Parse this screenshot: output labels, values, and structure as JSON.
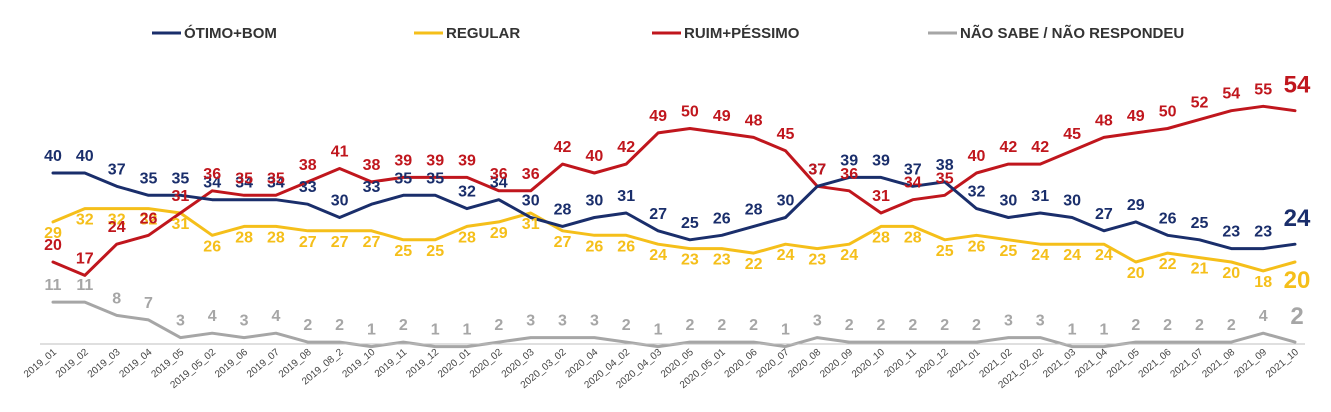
{
  "chart_data": {
    "type": "line",
    "title": "",
    "xlabel": "",
    "ylabel": "",
    "ylim": [
      0,
      60
    ],
    "grid": false,
    "legend_position": "top",
    "categories": [
      "2019_01",
      "2019_02",
      "2019_03",
      "2019_04",
      "2019_05",
      "2019_05_02",
      "2019_06",
      "2019_07",
      "2019_08",
      "2019_08_2",
      "2019_10",
      "2019_11",
      "2019_12",
      "2020_01",
      "2020_02",
      "2020_03",
      "2020_03_02",
      "2020_04",
      "2020_04_02",
      "2020_04_03",
      "2020_05",
      "2020_05_01",
      "2020_06",
      "2020_07",
      "2020_08",
      "2020_09",
      "2020_10",
      "2020_11",
      "2020_12",
      "2021_01",
      "2021_02",
      "2021_02_02",
      "2021_03",
      "2021_04",
      "2021_05",
      "2021_06",
      "2021_07",
      "2021_08",
      "2021_09",
      "2021_10"
    ],
    "series": [
      {
        "name": "ÓTIMO+BOM",
        "color": "#1a2e6b",
        "values": [
          40,
          40,
          37,
          35,
          35,
          34,
          34,
          34,
          33,
          30,
          33,
          35,
          35,
          32,
          34,
          30,
          28,
          30,
          31,
          27,
          25,
          26,
          28,
          30,
          37,
          39,
          39,
          37,
          38,
          32,
          30,
          31,
          30,
          27,
          29,
          26,
          25,
          23,
          23,
          24
        ]
      },
      {
        "name": "REGULAR",
        "color": "#f5bf1a",
        "values": [
          29,
          32,
          32,
          32,
          31,
          26,
          28,
          28,
          27,
          27,
          27,
          25,
          25,
          28,
          29,
          31,
          27,
          26,
          26,
          24,
          23,
          23,
          22,
          24,
          23,
          24,
          28,
          28,
          25,
          26,
          25,
          24,
          24,
          24,
          20,
          22,
          21,
          20,
          18,
          20
        ]
      },
      {
        "name": "RUIM+PÉSSIMO",
        "color": "#c0161d",
        "values": [
          20,
          17,
          24,
          26,
          31,
          36,
          35,
          35,
          38,
          41,
          38,
          39,
          39,
          39,
          36,
          36,
          42,
          40,
          42,
          49,
          50,
          49,
          48,
          45,
          37,
          36,
          31,
          34,
          35,
          40,
          42,
          42,
          45,
          48,
          49,
          50,
          52,
          54,
          55,
          54
        ]
      },
      {
        "name": "NÃO SABE / NÃO RESPONDEU",
        "color": "#a6a6a6",
        "values": [
          11,
          11,
          8,
          7,
          3,
          4,
          3,
          4,
          2,
          2,
          1,
          2,
          1,
          1,
          2,
          3,
          3,
          3,
          2,
          1,
          2,
          2,
          2,
          1,
          3,
          2,
          2,
          2,
          2,
          2,
          3,
          3,
          1,
          1,
          2,
          2,
          2,
          2,
          4,
          2
        ]
      }
    ]
  }
}
